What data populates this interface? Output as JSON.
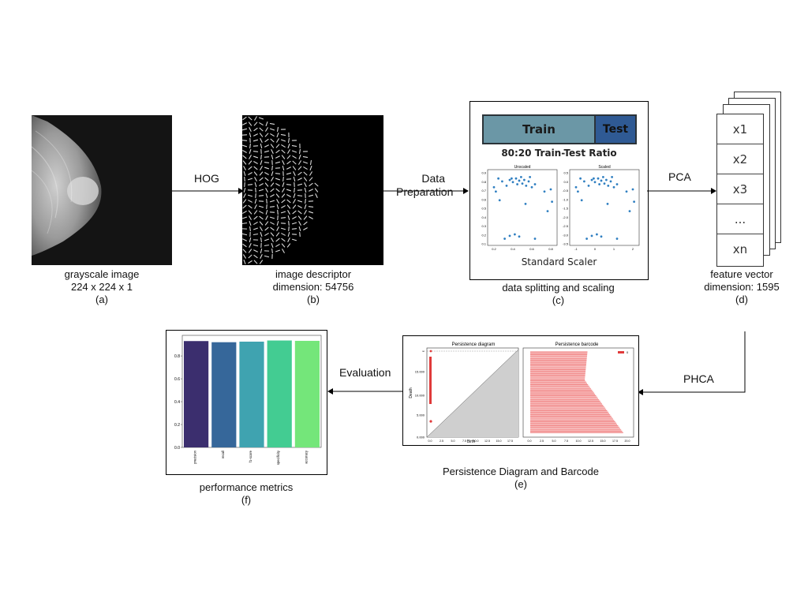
{
  "steps": {
    "a": {
      "line1": "grayscale image",
      "line2": "224 x 224 x 1",
      "tag": "(a)"
    },
    "b": {
      "line1": "image descriptor",
      "line2": "dimension: 54756",
      "tag": "(b)"
    },
    "c": {
      "line1": "data splitting and scaling",
      "tag": "(c)"
    },
    "d": {
      "line1": "feature vector",
      "line2": "dimension: 1595",
      "tag": "(d)"
    },
    "e": {
      "line1": "Persistence Diagram and Barcode",
      "tag": "(e)"
    },
    "f": {
      "line1": "performance metrics",
      "tag": "(f)"
    }
  },
  "arrows": {
    "hog": "HOG",
    "data_prep_1": "Data",
    "data_prep_2": "Preparation",
    "pca": "PCA",
    "phca": "PHCA",
    "evaluation": "Evaluation"
  },
  "split": {
    "train": "Train",
    "test": "Test",
    "ratio": "80:20 Train-Test Ratio",
    "scaler": "Standard Scaler",
    "unscaled_title": "Unscaled",
    "scaled_title": "Scaled",
    "unscaled_yticks": [
      "0.9",
      "0.8",
      "0.7",
      "0.6",
      "0.5",
      "0.4",
      "0.3",
      "0.2",
      "0.1"
    ],
    "unscaled_xticks": [
      "0.2",
      "0.4",
      "0.6",
      "0.8"
    ],
    "scaled_yticks": [
      "0.5",
      "0.0",
      "-0.5",
      "-1.0",
      "-1.5",
      "-2.0",
      "-2.5",
      "-3.0",
      "-3.5"
    ],
    "scaled_xticks": [
      "-1",
      "0",
      "1",
      "2"
    ]
  },
  "feature_vector": [
    "x1",
    "x2",
    "x3",
    "...",
    "xn"
  ],
  "persistence": {
    "diagram_title": "Persistence diagram",
    "barcode_title": "Persistence barcode",
    "diagram_xlabel": "Birth",
    "diagram_ylabel": "Death",
    "diagram_yticks": [
      "∞",
      "15.000",
      "10.000",
      "5.000",
      "0.000"
    ],
    "diagram_xticks": [
      "0.0",
      "2.5",
      "5.0",
      "7.5",
      "10.0",
      "12.5",
      "15.0",
      "17.5"
    ],
    "barcode_xticks": [
      "0.0",
      "2.5",
      "5.0",
      "7.5",
      "10.0",
      "12.5",
      "15.0",
      "17.5",
      "20.0"
    ],
    "legend_label": "0"
  },
  "chart_data": {
    "type": "bar",
    "categories": [
      "precision",
      "recall",
      "f1-score",
      "specificity",
      "accuracy"
    ],
    "values": [
      0.93,
      0.92,
      0.925,
      0.935,
      0.932
    ],
    "colors": [
      "#3b2e6e",
      "#36679a",
      "#3fa3b0",
      "#43cc92",
      "#74e67a"
    ],
    "yticks": [
      "0.0",
      "0.2",
      "0.4",
      "0.6",
      "0.8"
    ],
    "ylim": [
      0,
      0.98
    ]
  }
}
